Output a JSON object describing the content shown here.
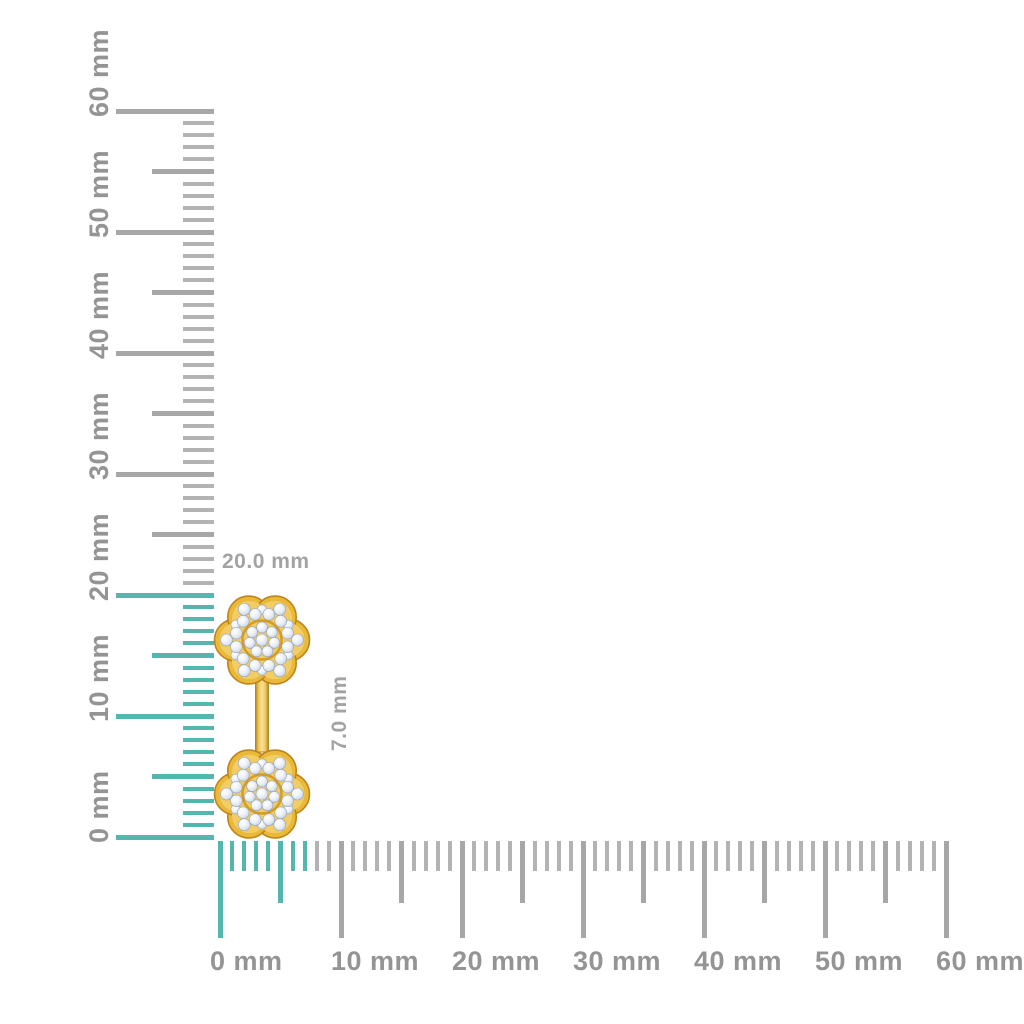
{
  "scene": {
    "name": "jewelry-measurement-diagram",
    "item": "flower-pave-diamond-gold-earring"
  },
  "vertical_ruler": {
    "unit": "mm",
    "min": 0,
    "max": 60,
    "label_step": 10,
    "labels": [
      "0 mm",
      "10 mm",
      "20 mm",
      "30 mm",
      "40 mm",
      "50 mm",
      "60 mm"
    ],
    "highlight_to": 20
  },
  "horizontal_ruler": {
    "unit": "mm",
    "min": 0,
    "max": 60,
    "label_step": 10,
    "labels": [
      "0 mm",
      "10 mm",
      "20 mm",
      "30 mm",
      "40 mm",
      "50 mm",
      "60 mm"
    ],
    "highlight_to": 7
  },
  "dimensions": {
    "height_label": "20.0 mm",
    "width_label": "7.0 mm"
  },
  "colors": {
    "background": "#ffffff",
    "teal": "#54b6ac",
    "tick_gray": "#b3b3b3",
    "tick_gray_major": "#a7a7a7",
    "ruler_label": "#949494",
    "dimension_label": "#a3a3a3",
    "gold": "#e9b93a",
    "gold_dark": "#c08418",
    "gold_light": "#f2cd66",
    "gold_ring": "#d49c21",
    "diamond": "#e3eaf3",
    "diamond_edge": "#8fa0ba"
  }
}
